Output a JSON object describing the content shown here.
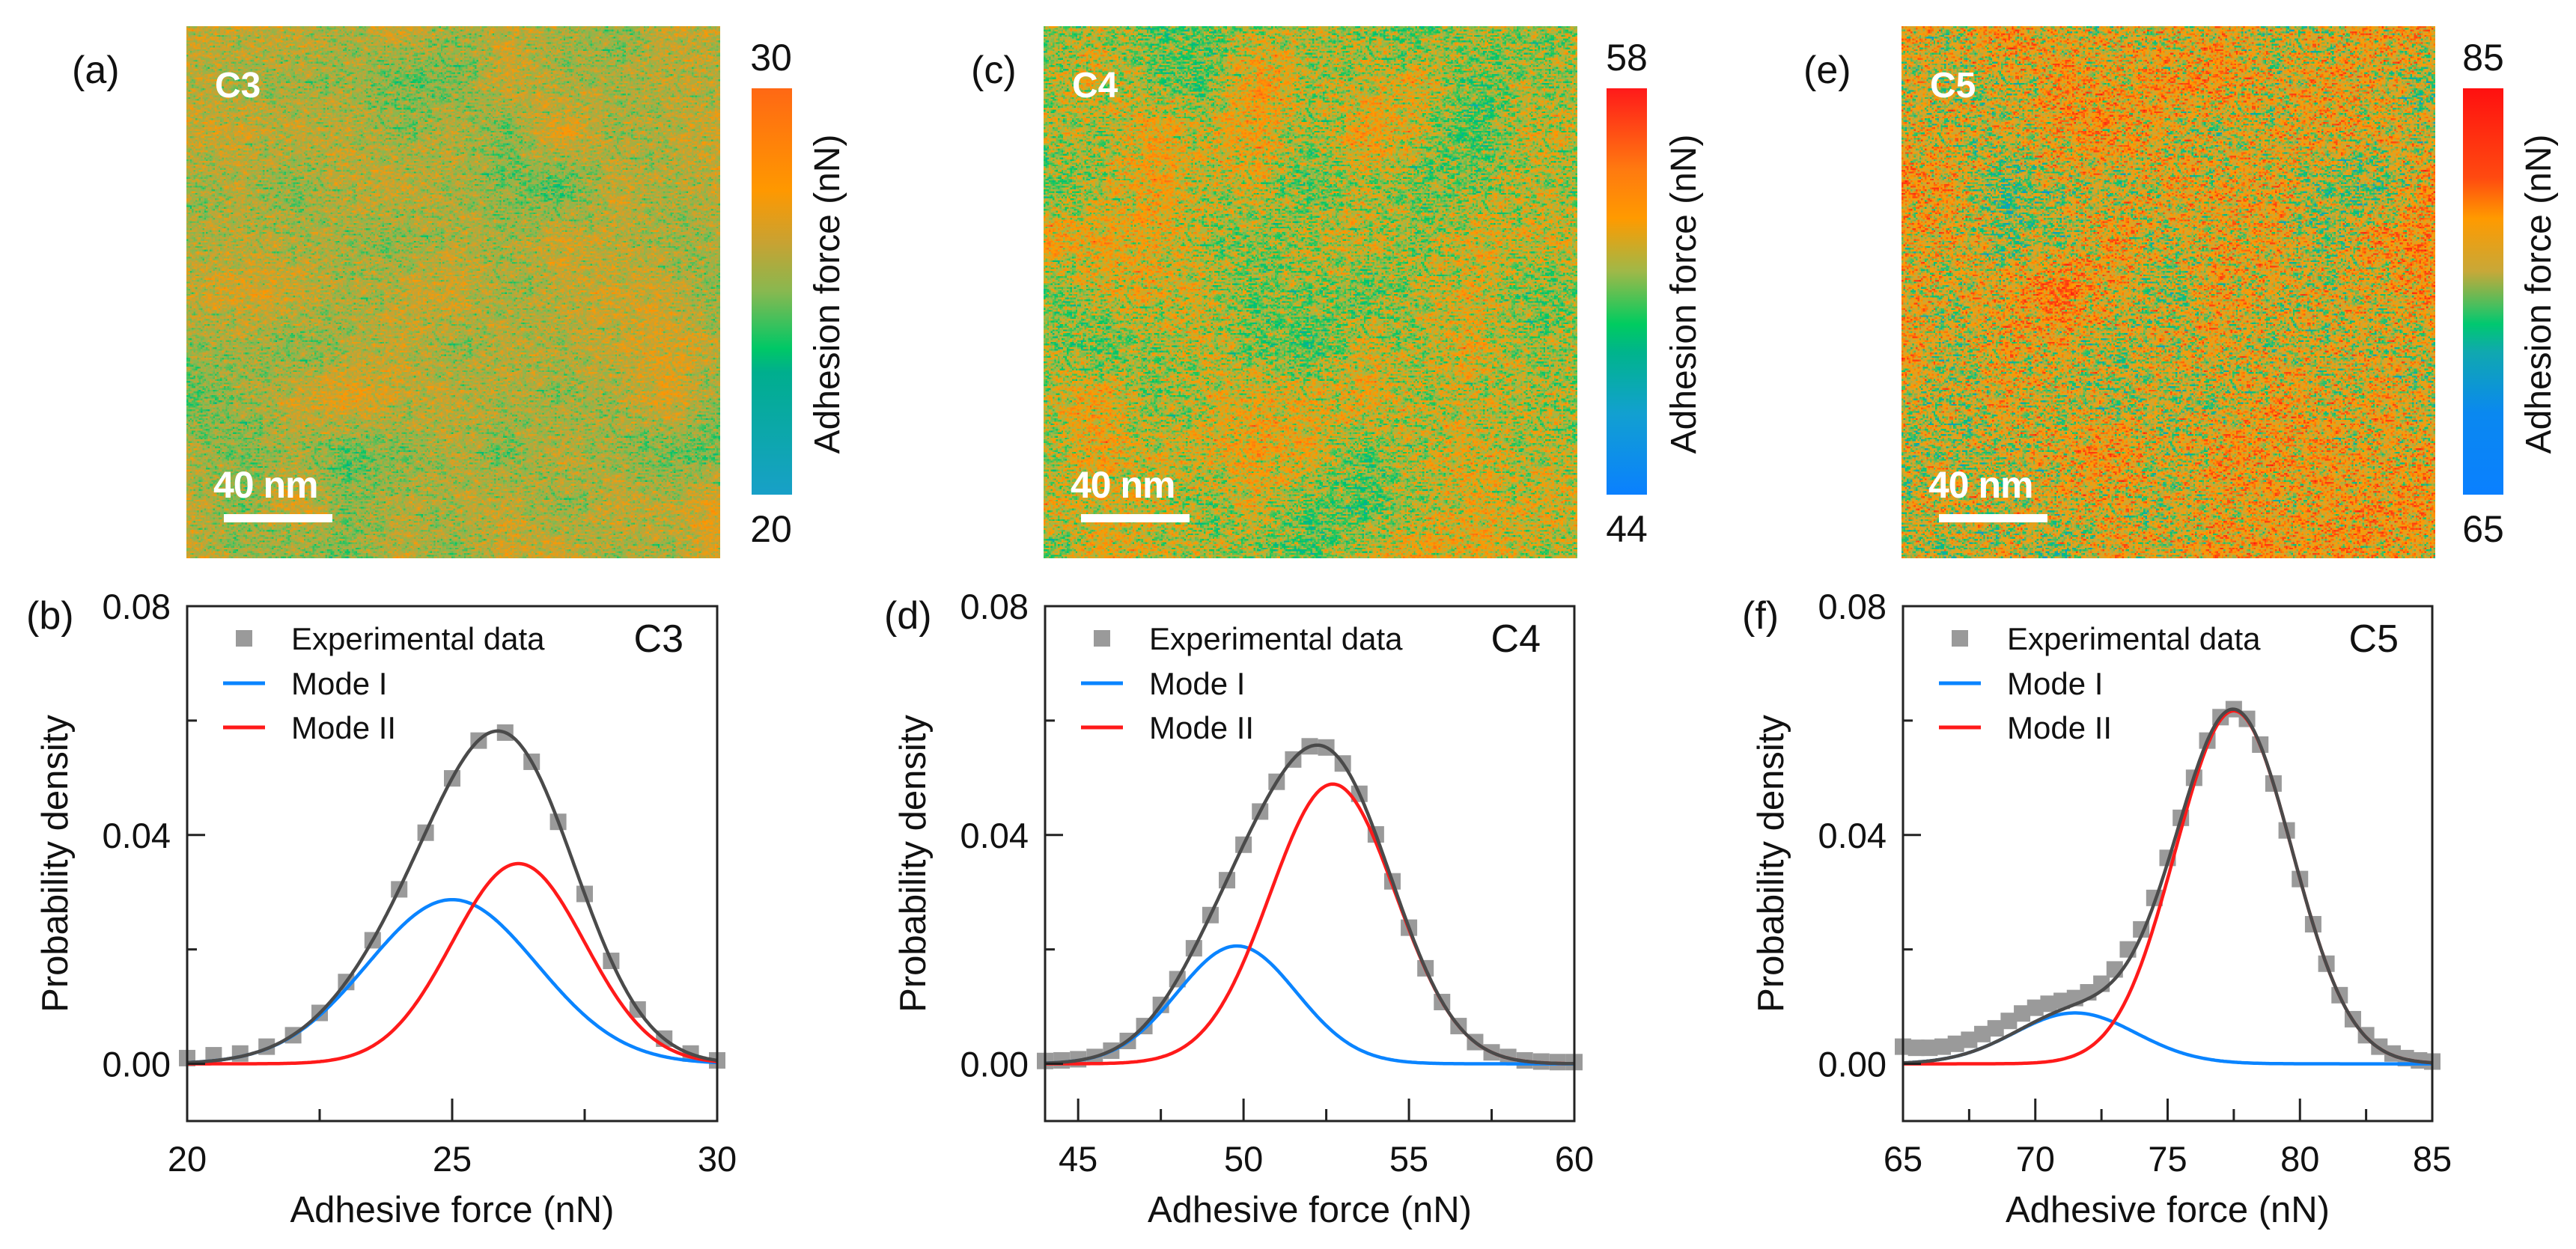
{
  "maps": [
    {
      "panel_label": "(a)",
      "sample": "C3",
      "scale_bar": "40 nm",
      "colorbar": {
        "max": "30",
        "min": "20",
        "label": "Adhesion force (nN)",
        "stops": [
          [
            0,
            "#18a0c8"
          ],
          [
            0.3,
            "#00ae8e"
          ],
          [
            0.36,
            "#00c866"
          ],
          [
            0.5,
            "#88b850"
          ],
          [
            0.62,
            "#c8a232"
          ],
          [
            0.75,
            "#ff9800"
          ],
          [
            1,
            "#ff6814"
          ]
        ]
      },
      "value_mean": 0.57,
      "value_spread": 0.17
    },
    {
      "panel_label": "(c)",
      "sample": "C4",
      "scale_bar": "40 nm",
      "colorbar": {
        "max": "58",
        "min": "44",
        "label": "Adhesion force (nN)",
        "stops": [
          [
            0,
            "#0a80ff"
          ],
          [
            0.2,
            "#12a0d0"
          ],
          [
            0.35,
            "#00b48c"
          ],
          [
            0.42,
            "#00cc60"
          ],
          [
            0.55,
            "#a0b848"
          ],
          [
            0.68,
            "#ff9a00"
          ],
          [
            0.8,
            "#ff7a10"
          ],
          [
            1,
            "#ff1a1a"
          ]
        ]
      },
      "value_mean": 0.58,
      "value_spread": 0.2
    },
    {
      "panel_label": "(e)",
      "sample": "C5",
      "scale_bar": "40 nm",
      "colorbar": {
        "max": "85",
        "min": "65",
        "label": "Adhesion force (nN)",
        "stops": [
          [
            0,
            "#0a80ff"
          ],
          [
            0.2,
            "#0a88f0"
          ],
          [
            0.35,
            "#10a8b0"
          ],
          [
            0.42,
            "#00c870"
          ],
          [
            0.46,
            "#40c060"
          ],
          [
            0.55,
            "#c8a838"
          ],
          [
            0.68,
            "#ff9a00"
          ],
          [
            0.78,
            "#ff4a10"
          ],
          [
            1,
            "#ff1010"
          ]
        ]
      },
      "value_mean": 0.6,
      "value_spread": 0.24
    }
  ],
  "chart_data": [
    {
      "type": "scatter",
      "panel_label": "(b)",
      "sample_label": "C3",
      "xlabel": "Adhesive force (nN)",
      "ylabel": "Probability density",
      "xlim": [
        20,
        30
      ],
      "ylim": [
        -0.01,
        0.08
      ],
      "x_ticks": [
        {
          "value": 20,
          "label": "20"
        },
        {
          "value": 25,
          "label": "25"
        },
        {
          "value": 30,
          "label": "30"
        }
      ],
      "x_minor_ticks": [
        22.5,
        27.5
      ],
      "y_ticks": [
        {
          "value": 0,
          "label": "0.00"
        },
        {
          "value": 0.04,
          "label": "0.04"
        },
        {
          "value": 0.08,
          "label": "0.08"
        }
      ],
      "y_minor_ticks": [
        0.02,
        0.06
      ],
      "legend": [
        {
          "label": "Experimental data",
          "kind": "square",
          "color": "#9a9a9a"
        },
        {
          "label": "Mode I",
          "kind": "line",
          "color": "#0a84ff"
        },
        {
          "label": "Mode II",
          "kind": "line",
          "color": "#ff1a1a"
        }
      ],
      "experimental": {
        "x_start": 20,
        "x_step": 0.5,
        "y": [
          0.001,
          0.0015,
          0.0018,
          0.003,
          0.005,
          0.0089,
          0.0143,
          0.0216,
          0.0305,
          0.0404,
          0.0499,
          0.0565,
          0.0579,
          0.0528,
          0.0423,
          0.0297,
          0.018,
          0.0095,
          0.0044,
          0.0018,
          0.0006
        ]
      },
      "components": [
        {
          "label_ref": 1,
          "amplitude": 0.0287,
          "center": 25.0,
          "sigma": 1.6,
          "color": "#0a84ff"
        },
        {
          "label_ref": 2,
          "amplitude": 0.035,
          "center": 26.25,
          "sigma": 1.25,
          "color": "#ff1a1a"
        }
      ],
      "sum_color": "#4a4a4a"
    },
    {
      "type": "scatter",
      "panel_label": "(d)",
      "sample_label": "C4",
      "xlabel": "Adhesive force (nN)",
      "ylabel": "Probability density",
      "xlim": [
        44,
        60
      ],
      "ylim": [
        -0.01,
        0.08
      ],
      "x_ticks": [
        {
          "value": 45,
          "label": "45"
        },
        {
          "value": 50,
          "label": "50"
        },
        {
          "value": 55,
          "label": "55"
        },
        {
          "value": 60,
          "label": "60"
        }
      ],
      "x_minor_ticks": [
        47.5,
        52.5,
        57.5
      ],
      "y_ticks": [
        {
          "value": 0,
          "label": "0.00"
        },
        {
          "value": 0.04,
          "label": "0.04"
        },
        {
          "value": 0.08,
          "label": "0.08"
        }
      ],
      "y_minor_ticks": [
        0.02,
        0.06
      ],
      "legend": [
        {
          "label": "Experimental data",
          "kind": "square",
          "color": "#9a9a9a"
        },
        {
          "label": "Mode I",
          "kind": "line",
          "color": "#0a84ff"
        },
        {
          "label": "Mode II",
          "kind": "line",
          "color": "#ff1a1a"
        }
      ],
      "experimental": {
        "x_start": 44,
        "x_step": 0.5,
        "y": [
          0.0005,
          0.0006,
          0.0008,
          0.0012,
          0.0023,
          0.004,
          0.0066,
          0.0103,
          0.0148,
          0.0202,
          0.026,
          0.0321,
          0.0383,
          0.0441,
          0.0493,
          0.0532,
          0.0555,
          0.0553,
          0.0525,
          0.0472,
          0.0401,
          0.0319,
          0.0238,
          0.0167,
          0.0108,
          0.0066,
          0.0038,
          0.002,
          0.0012,
          0.0006,
          0.0004,
          0.0003,
          0.0003
        ]
      },
      "components": [
        {
          "label_ref": 1,
          "amplitude": 0.0206,
          "center": 49.8,
          "sigma": 1.8,
          "color": "#0a84ff"
        },
        {
          "label_ref": 2,
          "amplitude": 0.0489,
          "center": 52.7,
          "sigma": 1.9,
          "color": "#ff1a1a"
        }
      ],
      "sum_color": "#4a4a4a"
    },
    {
      "type": "scatter",
      "panel_label": "(f)",
      "sample_label": "C5",
      "xlabel": "Adhesive force (nN)",
      "ylabel": "Probability density",
      "xlim": [
        65,
        85
      ],
      "ylim": [
        -0.01,
        0.08
      ],
      "x_ticks": [
        {
          "value": 65,
          "label": "65"
        },
        {
          "value": 70,
          "label": "70"
        },
        {
          "value": 75,
          "label": "75"
        },
        {
          "value": 80,
          "label": "80"
        },
        {
          "value": 85,
          "label": "85"
        }
      ],
      "x_minor_ticks": [
        67.5,
        72.5,
        77.5,
        82.5
      ],
      "y_ticks": [
        {
          "value": 0,
          "label": "0.00"
        },
        {
          "value": 0.04,
          "label": "0.04"
        },
        {
          "value": 0.08,
          "label": "0.08"
        }
      ],
      "y_minor_ticks": [
        0.02,
        0.06
      ],
      "legend": [
        {
          "label": "Experimental data",
          "kind": "square",
          "color": "#9a9a9a"
        },
        {
          "label": "Mode I",
          "kind": "line",
          "color": "#0a84ff"
        },
        {
          "label": "Mode II",
          "kind": "line",
          "color": "#ff1a1a"
        }
      ],
      "experimental": {
        "x_start": 65,
        "x_step": 0.5,
        "y": [
          0.003,
          0.0028,
          0.0028,
          0.003,
          0.0035,
          0.0042,
          0.0052,
          0.0062,
          0.0075,
          0.0088,
          0.0098,
          0.0105,
          0.011,
          0.0115,
          0.0125,
          0.014,
          0.0165,
          0.02,
          0.0235,
          0.029,
          0.036,
          0.043,
          0.05,
          0.0565,
          0.0606,
          0.062,
          0.0603,
          0.0558,
          0.049,
          0.0408,
          0.0323,
          0.0244,
          0.0175,
          0.012,
          0.0078,
          0.005,
          0.003,
          0.0018,
          0.001,
          0.0006,
          0.0004
        ]
      },
      "components": [
        {
          "label_ref": 1,
          "amplitude": 0.0089,
          "center": 71.5,
          "sigma": 2.3,
          "color": "#0a84ff"
        },
        {
          "label_ref": 2,
          "amplitude": 0.0617,
          "center": 77.5,
          "sigma": 2.2,
          "color": "#ff1a1a"
        }
      ],
      "sum_color": "#4a4a4a"
    }
  ]
}
